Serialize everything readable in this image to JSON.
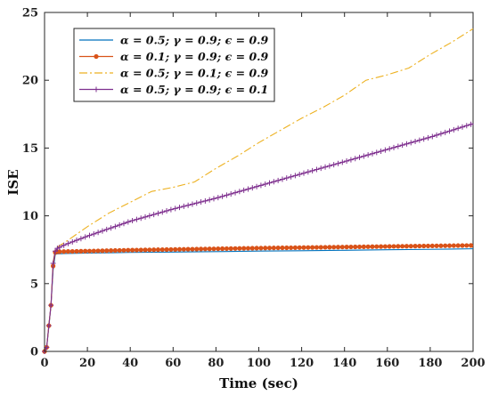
{
  "chart_data": {
    "type": "line",
    "title": "",
    "xlabel": "Time (sec)",
    "ylabel": "ISE",
    "xlim": [
      0,
      200
    ],
    "ylim": [
      0,
      25
    ],
    "x_ticks": [
      "0",
      "20",
      "40",
      "60",
      "80",
      "100",
      "120",
      "140",
      "160",
      "180",
      "200"
    ],
    "y_ticks": [
      "0",
      "5",
      "10",
      "15",
      "20",
      "25"
    ],
    "grid": false,
    "legend_position": "top-left",
    "series": [
      {
        "name": "α = 0.5; γ = 0.9; ϵ = 0.9",
        "color": "#0072BD",
        "style": "solid",
        "marker": "none",
        "x": [
          0,
          1,
          2,
          3,
          4,
          5,
          6,
          10,
          20,
          40,
          60,
          80,
          100,
          120,
          140,
          160,
          180,
          200
        ],
        "y": [
          0,
          0.3,
          1.8,
          3.4,
          6.0,
          7.15,
          7.2,
          7.22,
          7.25,
          7.3,
          7.33,
          7.36,
          7.4,
          7.43,
          7.46,
          7.5,
          7.53,
          7.57
        ]
      },
      {
        "name": "α = 0.1; γ = 0.9; ϵ = 0.9",
        "color": "#D95319",
        "style": "solid",
        "marker": "dot",
        "x": [
          0,
          1,
          2,
          3,
          4,
          5,
          6,
          10,
          20,
          40,
          60,
          80,
          100,
          120,
          140,
          160,
          180,
          200
        ],
        "y": [
          0,
          0.3,
          1.9,
          3.4,
          6.3,
          7.3,
          7.35,
          7.37,
          7.4,
          7.47,
          7.52,
          7.57,
          7.62,
          7.66,
          7.7,
          7.74,
          7.78,
          7.82
        ]
      },
      {
        "name": "α = 0.5; γ = 0.1; ϵ = 0.9",
        "color": "#EDB120",
        "style": "dashdot",
        "marker": "none",
        "x": [
          0,
          1,
          2,
          3,
          4,
          5,
          6,
          10,
          20,
          30,
          40,
          50,
          60,
          70,
          80,
          90,
          100,
          110,
          120,
          130,
          140,
          150,
          160,
          170,
          180,
          190,
          200
        ],
        "y": [
          0,
          0.3,
          1.9,
          3.4,
          6.6,
          7.5,
          7.7,
          8.1,
          9.2,
          10.2,
          11.0,
          11.8,
          12.1,
          12.5,
          13.5,
          14.4,
          15.4,
          16.3,
          17.2,
          18.0,
          18.9,
          20.0,
          20.4,
          20.9,
          21.9,
          22.8,
          23.8
        ]
      },
      {
        "name": "α = 0.5; γ = 0.9; ϵ = 0.1",
        "color": "#7E2F8E",
        "style": "solid",
        "marker": "plus",
        "x": [
          0,
          1,
          2,
          3,
          4,
          5,
          6,
          10,
          20,
          40,
          60,
          80,
          100,
          120,
          140,
          160,
          180,
          200
        ],
        "y": [
          0,
          0.3,
          1.9,
          3.4,
          6.5,
          7.4,
          7.6,
          7.9,
          8.5,
          9.6,
          10.5,
          11.3,
          12.2,
          13.1,
          14.0,
          14.9,
          15.8,
          16.8
        ]
      }
    ]
  }
}
